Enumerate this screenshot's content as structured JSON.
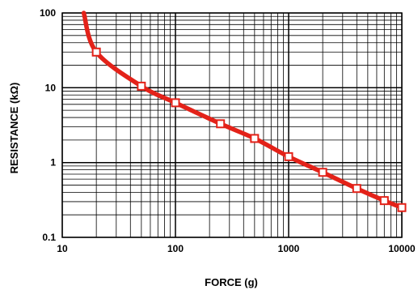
{
  "chart_data": {
    "type": "line",
    "xlabel": "FORCE (g)",
    "ylabel": "RESISTANCE (kΩ)",
    "x_scale": "log",
    "y_scale": "log",
    "xlim": [
      10,
      10000
    ],
    "ylim": [
      0.1,
      100
    ],
    "grid": true,
    "x_tick_labels": [
      "10",
      "100",
      "1000",
      "10000"
    ],
    "y_tick_labels": [
      "0.1",
      "1",
      "10",
      "100"
    ],
    "series": [
      {
        "color": "#e32219",
        "curve_start": {
          "x": 15.5,
          "y": 100
        },
        "points": [
          {
            "x": 20,
            "y": 30
          },
          {
            "x": 50,
            "y": 10.5
          },
          {
            "x": 100,
            "y": 6.3
          },
          {
            "x": 250,
            "y": 3.3
          },
          {
            "x": 500,
            "y": 2.1
          },
          {
            "x": 1000,
            "y": 1.2
          },
          {
            "x": 2000,
            "y": 0.74
          },
          {
            "x": 4000,
            "y": 0.45
          },
          {
            "x": 7000,
            "y": 0.31
          },
          {
            "x": 10000,
            "y": 0.25
          }
        ]
      }
    ]
  }
}
